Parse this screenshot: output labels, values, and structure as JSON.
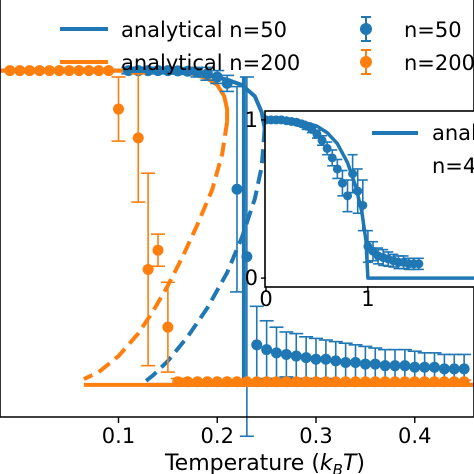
{
  "colors": {
    "blue": "#1f77b4",
    "orange": "#ff7f0e",
    "axis": "#000000"
  },
  "chart_data": [
    {
      "type": "line",
      "panel": "main",
      "xlabel": "Temperature (k_B T)",
      "xlabel_parts": {
        "prefix": "Temperature (",
        "sym": "k",
        "sub": "B",
        "var": "T",
        "suffix": ")"
      },
      "xlim": [
        -0.02,
        0.46
      ],
      "ylim": [
        -0.08,
        1.22
      ],
      "xticks": [
        0.1,
        0.2,
        0.3,
        0.4
      ],
      "xtick_labels": [
        "0.1",
        "0.2",
        "0.3",
        "0.4"
      ],
      "legend": {
        "placement": "top",
        "entries": [
          {
            "label": "analytical n=50",
            "series": "analytical_n50"
          },
          {
            "label": "n=50",
            "series": "sim_n50"
          },
          {
            "label": "analytical n=200",
            "series": "analytical_n200"
          },
          {
            "label": "n=200",
            "series": "sim_n200"
          }
        ]
      },
      "series": [
        {
          "id": "analytical_n50",
          "name": "analytical n=50",
          "color": "blue",
          "style": "line",
          "stable_upper": [
            [
              -0.02,
              1.0
            ],
            [
              0.1,
              1.0
            ],
            [
              0.14,
              0.998
            ],
            [
              0.17,
              0.993
            ],
            [
              0.19,
              0.985
            ],
            [
              0.21,
              0.972
            ],
            [
              0.225,
              0.955
            ],
            [
              0.238,
              0.92
            ],
            [
              0.245,
              0.87
            ],
            [
              0.248,
              0.82
            ]
          ],
          "unstable": [
            [
              0.248,
              0.82
            ],
            [
              0.245,
              0.7
            ],
            [
              0.238,
              0.6
            ],
            [
              0.225,
              0.48
            ],
            [
              0.21,
              0.37
            ],
            [
              0.19,
              0.26
            ],
            [
              0.17,
              0.17
            ],
            [
              0.15,
              0.095
            ],
            [
              0.135,
              0.05
            ],
            [
              0.128,
              0.033
            ]
          ],
          "stable_lower": [
            [
              0.128,
              0.02
            ],
            [
              0.2,
              0.02
            ],
            [
              0.3,
              0.02
            ],
            [
              0.46,
              0.02
            ]
          ],
          "jump": [
            [
              0.227,
              0.02
            ],
            [
              0.227,
              0.98
            ]
          ]
        },
        {
          "id": "analytical_n200",
          "name": "analytical n=200",
          "color": "orange",
          "style": "line",
          "stable_upper": [
            [
              -0.02,
              1.0
            ],
            [
              0.12,
              1.0
            ],
            [
              0.15,
              0.998
            ],
            [
              0.175,
              0.99
            ],
            [
              0.19,
              0.975
            ],
            [
              0.2,
              0.955
            ],
            [
              0.207,
              0.92
            ],
            [
              0.21,
              0.88
            ],
            [
              0.21,
              0.84
            ]
          ],
          "unstable": [
            [
              0.21,
              0.84
            ],
            [
              0.205,
              0.74
            ],
            [
              0.195,
              0.63
            ],
            [
              0.18,
              0.52
            ],
            [
              0.165,
              0.42
            ],
            [
              0.15,
              0.33
            ],
            [
              0.135,
              0.25
            ],
            [
              0.12,
              0.18
            ],
            [
              0.1,
              0.11
            ],
            [
              0.08,
              0.06
            ],
            [
              0.065,
              0.038
            ]
          ],
          "stable_lower": [
            [
              0.065,
              0.02
            ],
            [
              0.2,
              0.02
            ],
            [
              0.3,
              0.02
            ],
            [
              0.46,
              0.02
            ]
          ]
        },
        {
          "id": "sim_n50",
          "name": "n=50",
          "color": "blue",
          "style": "errorbar",
          "points": [
            {
              "x": 0.11,
              "y": 1.0,
              "err": 0.01
            },
            {
              "x": 0.12,
              "y": 1.0,
              "err": 0.01
            },
            {
              "x": 0.13,
              "y": 1.0,
              "err": 0.01
            },
            {
              "x": 0.14,
              "y": 1.0,
              "err": 0.01
            },
            {
              "x": 0.15,
              "y": 1.0,
              "err": 0.01
            },
            {
              "x": 0.16,
              "y": 0.999,
              "err": 0.01
            },
            {
              "x": 0.17,
              "y": 0.998,
              "err": 0.01
            },
            {
              "x": 0.18,
              "y": 0.995,
              "err": 0.015
            },
            {
              "x": 0.19,
              "y": 0.99,
              "err": 0.02
            },
            {
              "x": 0.2,
              "y": 0.98,
              "err": 0.02
            },
            {
              "x": 0.21,
              "y": 0.96,
              "err": 0.025
            },
            {
              "x": 0.22,
              "y": 0.63,
              "err": 0.32
            },
            {
              "x": 0.23,
              "y": 0.42,
              "err": 0.56
            },
            {
              "x": 0.24,
              "y": 0.145,
              "err": 0.12
            },
            {
              "x": 0.25,
              "y": 0.13,
              "err": 0.09
            },
            {
              "x": 0.26,
              "y": 0.12,
              "err": 0.08
            },
            {
              "x": 0.27,
              "y": 0.115,
              "err": 0.07
            },
            {
              "x": 0.28,
              "y": 0.11,
              "err": 0.07
            },
            {
              "x": 0.29,
              "y": 0.105,
              "err": 0.065
            },
            {
              "x": 0.3,
              "y": 0.1,
              "err": 0.065
            },
            {
              "x": 0.31,
              "y": 0.1,
              "err": 0.06
            },
            {
              "x": 0.32,
              "y": 0.095,
              "err": 0.06
            },
            {
              "x": 0.33,
              "y": 0.09,
              "err": 0.06
            },
            {
              "x": 0.34,
              "y": 0.09,
              "err": 0.055
            },
            {
              "x": 0.35,
              "y": 0.085,
              "err": 0.055
            },
            {
              "x": 0.36,
              "y": 0.085,
              "err": 0.05
            },
            {
              "x": 0.37,
              "y": 0.08,
              "err": 0.05
            },
            {
              "x": 0.38,
              "y": 0.08,
              "err": 0.05
            },
            {
              "x": 0.39,
              "y": 0.08,
              "err": 0.05
            },
            {
              "x": 0.4,
              "y": 0.075,
              "err": 0.05
            },
            {
              "x": 0.41,
              "y": 0.075,
              "err": 0.045
            },
            {
              "x": 0.42,
              "y": 0.075,
              "err": 0.045
            },
            {
              "x": 0.43,
              "y": 0.07,
              "err": 0.045
            },
            {
              "x": 0.44,
              "y": 0.07,
              "err": 0.045
            },
            {
              "x": 0.45,
              "y": 0.07,
              "err": 0.045
            }
          ]
        },
        {
          "id": "sim_n200",
          "name": "n=200",
          "color": "orange",
          "style": "errorbar",
          "points": [
            {
              "x": -0.01,
              "y": 1.0,
              "err": 0.0
            },
            {
              "x": 0.0,
              "y": 1.0,
              "err": 0.0
            },
            {
              "x": 0.01,
              "y": 1.0,
              "err": 0.0
            },
            {
              "x": 0.02,
              "y": 1.0,
              "err": 0.0
            },
            {
              "x": 0.03,
              "y": 1.0,
              "err": 0.0
            },
            {
              "x": 0.04,
              "y": 1.0,
              "err": 0.0
            },
            {
              "x": 0.05,
              "y": 1.0,
              "err": 0.0
            },
            {
              "x": 0.06,
              "y": 1.0,
              "err": 0.0
            },
            {
              "x": 0.07,
              "y": 1.0,
              "err": 0.0
            },
            {
              "x": 0.08,
              "y": 1.0,
              "err": 0.0
            },
            {
              "x": 0.09,
              "y": 1.0,
              "err": 0.0
            },
            {
              "x": 0.1,
              "y": 0.88,
              "err": 0.1
            },
            {
              "x": 0.12,
              "y": 0.79,
              "err": 0.2
            },
            {
              "x": 0.13,
              "y": 0.38,
              "err": 0.3
            },
            {
              "x": 0.14,
              "y": 0.44,
              "err": 0.05
            },
            {
              "x": 0.15,
              "y": 0.2,
              "err": 0.14
            },
            {
              "x": 0.16,
              "y": 0.03,
              "err": 0.01
            },
            {
              "x": 0.17,
              "y": 0.03,
              "err": 0.005
            },
            {
              "x": 0.18,
              "y": 0.03,
              "err": 0.005
            },
            {
              "x": 0.19,
              "y": 0.03,
              "err": 0.005
            },
            {
              "x": 0.2,
              "y": 0.03,
              "err": 0.005
            },
            {
              "x": 0.21,
              "y": 0.03,
              "err": 0.005
            },
            {
              "x": 0.22,
              "y": 0.03,
              "err": 0.005
            },
            {
              "x": 0.23,
              "y": 0.03,
              "err": 0.005
            },
            {
              "x": 0.24,
              "y": 0.03,
              "err": 0.005
            },
            {
              "x": 0.25,
              "y": 0.03,
              "err": 0.005
            },
            {
              "x": 0.26,
              "y": 0.03,
              "err": 0.005
            },
            {
              "x": 0.27,
              "y": 0.03,
              "err": 0.005
            },
            {
              "x": 0.28,
              "y": 0.03,
              "err": 0.005
            },
            {
              "x": 0.29,
              "y": 0.03,
              "err": 0.005
            },
            {
              "x": 0.3,
              "y": 0.03,
              "err": 0.005
            },
            {
              "x": 0.31,
              "y": 0.03,
              "err": 0.005
            },
            {
              "x": 0.32,
              "y": 0.03,
              "err": 0.005
            },
            {
              "x": 0.33,
              "y": 0.03,
              "err": 0.005
            },
            {
              "x": 0.34,
              "y": 0.03,
              "err": 0.005
            },
            {
              "x": 0.35,
              "y": 0.03,
              "err": 0.005
            },
            {
              "x": 0.36,
              "y": 0.03,
              "err": 0.005
            },
            {
              "x": 0.37,
              "y": 0.03,
              "err": 0.005
            },
            {
              "x": 0.38,
              "y": 0.03,
              "err": 0.005
            },
            {
              "x": 0.39,
              "y": 0.03,
              "err": 0.005
            },
            {
              "x": 0.4,
              "y": 0.03,
              "err": 0.005
            },
            {
              "x": 0.41,
              "y": 0.03,
              "err": 0.005
            },
            {
              "x": 0.42,
              "y": 0.03,
              "err": 0.005
            },
            {
              "x": 0.43,
              "y": 0.03,
              "err": 0.005
            },
            {
              "x": 0.44,
              "y": 0.03,
              "err": 0.005
            },
            {
              "x": 0.45,
              "y": 0.03,
              "err": 0.005
            }
          ]
        }
      ]
    },
    {
      "type": "line",
      "panel": "inset",
      "xlim": [
        0,
        2.1
      ],
      "ylim": [
        -0.05,
        1.05
      ],
      "xticks": [
        0,
        1
      ],
      "xtick_labels": [
        "0",
        "1"
      ],
      "yticks": [
        0,
        1
      ],
      "ytick_labels": [
        "0",
        "1"
      ],
      "legend": {
        "placement": "top-right",
        "entries": [
          {
            "label": "anal",
            "series": "inset_analytical"
          },
          {
            "label": "n=4",
            "series": "inset_sim"
          }
        ]
      },
      "series": [
        {
          "id": "inset_analytical",
          "name": "anal",
          "color": "blue",
          "style": "line",
          "points": [
            [
              0,
              1.0
            ],
            [
              0.2,
              0.998
            ],
            [
              0.35,
              0.99
            ],
            [
              0.5,
              0.96
            ],
            [
              0.6,
              0.92
            ],
            [
              0.7,
              0.85
            ],
            [
              0.8,
              0.73
            ],
            [
              0.88,
              0.58
            ],
            [
              0.94,
              0.42
            ],
            [
              0.98,
              0.24
            ],
            [
              1.0,
              0.0
            ],
            [
              2.1,
              0.0
            ]
          ]
        },
        {
          "id": "inset_sim",
          "name": "n=4",
          "color": "blue",
          "style": "errorbar",
          "points": [
            {
              "x": 0.0,
              "y": 1.0,
              "err": 0.0
            },
            {
              "x": 0.05,
              "y": 1.0,
              "err": 0.0
            },
            {
              "x": 0.1,
              "y": 1.0,
              "err": 0.0
            },
            {
              "x": 0.15,
              "y": 1.0,
              "err": 0.0
            },
            {
              "x": 0.2,
              "y": 0.995,
              "err": 0.005
            },
            {
              "x": 0.25,
              "y": 0.99,
              "err": 0.01
            },
            {
              "x": 0.3,
              "y": 0.985,
              "err": 0.01
            },
            {
              "x": 0.35,
              "y": 0.975,
              "err": 0.015
            },
            {
              "x": 0.4,
              "y": 0.96,
              "err": 0.02
            },
            {
              "x": 0.45,
              "y": 0.94,
              "err": 0.02
            },
            {
              "x": 0.5,
              "y": 0.91,
              "err": 0.025
            },
            {
              "x": 0.55,
              "y": 0.87,
              "err": 0.03
            },
            {
              "x": 0.6,
              "y": 0.82,
              "err": 0.04
            },
            {
              "x": 0.65,
              "y": 0.76,
              "err": 0.05
            },
            {
              "x": 0.7,
              "y": 0.69,
              "err": 0.06
            },
            {
              "x": 0.75,
              "y": 0.6,
              "err": 0.08
            },
            {
              "x": 0.8,
              "y": 0.52,
              "err": 0.1
            },
            {
              "x": 0.85,
              "y": 0.66,
              "err": 0.12
            },
            {
              "x": 0.9,
              "y": 0.55,
              "err": 0.14
            },
            {
              "x": 0.95,
              "y": 0.46,
              "err": 0.16
            },
            {
              "x": 1.0,
              "y": 0.2,
              "err": 0.1
            },
            {
              "x": 1.05,
              "y": 0.17,
              "err": 0.06
            },
            {
              "x": 1.1,
              "y": 0.14,
              "err": 0.05
            },
            {
              "x": 1.15,
              "y": 0.13,
              "err": 0.05
            },
            {
              "x": 1.2,
              "y": 0.12,
              "err": 0.045
            },
            {
              "x": 1.25,
              "y": 0.11,
              "err": 0.04
            },
            {
              "x": 1.3,
              "y": 0.1,
              "err": 0.04
            },
            {
              "x": 1.35,
              "y": 0.1,
              "err": 0.04
            },
            {
              "x": 1.4,
              "y": 0.09,
              "err": 0.035
            },
            {
              "x": 1.45,
              "y": 0.09,
              "err": 0.035
            },
            {
              "x": 1.5,
              "y": 0.09,
              "err": 0.035
            }
          ]
        }
      ]
    }
  ]
}
